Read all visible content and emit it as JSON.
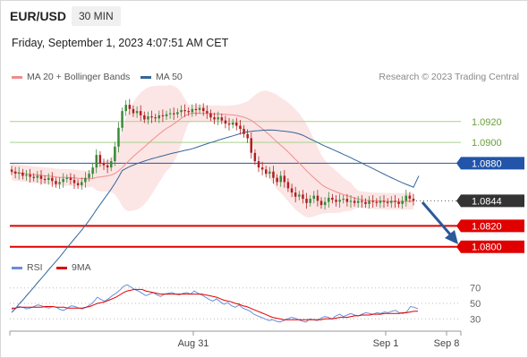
{
  "header": {
    "symbol": "EUR/USD",
    "timeframe": "30 MIN",
    "datetime": "Friday, September 1, 2023 4:07:51 AM CET"
  },
  "legend": {
    "items": [
      {
        "label": "MA 20 + Bollinger Bands",
        "color": "#f08c8c"
      },
      {
        "label": "MA 50",
        "color": "#33669a"
      }
    ],
    "credit": "Research © 2023 Trading Central"
  },
  "rsi_legend": {
    "items": [
      {
        "label": "RSI",
        "color": "#6a8ed6"
      },
      {
        "label": "9MA",
        "color": "#e00000"
      }
    ]
  },
  "colors": {
    "up": "#3a8a3a",
    "down": "#b02020",
    "band": "#fbdcdc",
    "ma20": "#f08c8c",
    "ma50": "#33669a",
    "support": "#e00000",
    "resistance_line": "#a9d18e",
    "pivot": "#2255aa",
    "arrow": "#2a5a9a"
  },
  "chart_data": [
    {
      "type": "candlestick",
      "title": "EUR/USD 30 MIN",
      "ylim": [
        1.0792,
        1.0955
      ],
      "x_ticks": [
        "Aug 31",
        "Sep 1",
        "Sep 8"
      ],
      "series": [
        {
          "name": "MA 20 + Bollinger Bands"
        },
        {
          "name": "MA 50"
        }
      ],
      "levels": [
        {
          "label": "1.0920",
          "value": 1.092,
          "style": "resistance"
        },
        {
          "label": "1.0900",
          "value": 1.09,
          "style": "resistance"
        },
        {
          "label": "1.0880",
          "value": 1.088,
          "style": "pivot"
        },
        {
          "label": "1.0844",
          "value": 1.0844,
          "style": "last"
        },
        {
          "label": "1.0820",
          "value": 1.082,
          "style": "support"
        },
        {
          "label": "1.0800",
          "value": 1.08,
          "style": "support"
        }
      ],
      "closes": [
        1.0872,
        1.087,
        1.0871,
        1.0868,
        1.0869,
        1.0867,
        1.0866,
        1.0868,
        1.0865,
        1.0864,
        1.0866,
        1.0863,
        1.086,
        1.0862,
        1.0865,
        1.0866,
        1.0864,
        1.0861,
        1.0859,
        1.0862,
        1.0866,
        1.087,
        1.0876,
        1.0888,
        1.088,
        1.0878,
        1.0876,
        1.0882,
        1.0896,
        1.0914,
        1.093,
        1.0936,
        1.0932,
        1.0928,
        1.093,
        1.0926,
        1.0922,
        1.0925,
        1.0924,
        1.0923,
        1.0926,
        1.0925,
        1.0927,
        1.0928,
        1.0927,
        1.0929,
        1.0931,
        1.093,
        1.0929,
        1.0932,
        1.0931,
        1.0933,
        1.093,
        1.0928,
        1.0924,
        1.0922,
        1.0924,
        1.0921,
        1.0918,
        1.0917,
        1.0919,
        1.0916,
        1.0913,
        1.0908,
        1.0904,
        1.089,
        1.0882,
        1.0876,
        1.0874,
        1.087,
        1.0872,
        1.0866,
        1.0862,
        1.0868,
        1.0862,
        1.0856,
        1.0852,
        1.0848,
        1.085,
        1.0846,
        1.0842,
        1.0846,
        1.0849,
        1.0844,
        1.084,
        1.0843,
        1.0847,
        1.0845,
        1.0843,
        1.0845,
        1.0846,
        1.0843,
        1.0844,
        1.0842,
        1.0844,
        1.0843,
        1.0841,
        1.0844,
        1.0843,
        1.0842,
        1.0844,
        1.0843,
        1.0842,
        1.0844,
        1.0843,
        1.0841,
        1.0844,
        1.0849,
        1.0846,
        1.0844
      ]
    },
    {
      "type": "line",
      "title": "RSI",
      "ylim": [
        20,
        80
      ],
      "y_ticks": [
        "70",
        "50",
        "30"
      ],
      "series": [
        {
          "name": "RSI",
          "values": [
            42,
            44,
            46,
            45,
            43,
            44,
            46,
            48,
            47,
            45,
            44,
            46,
            45,
            42,
            41,
            44,
            47,
            46,
            44,
            43,
            45,
            48,
            52,
            58,
            55,
            53,
            56,
            60,
            63,
            67,
            72,
            74,
            71,
            68,
            66,
            63,
            60,
            62,
            64,
            61,
            59,
            62,
            63,
            64,
            62,
            61,
            63,
            64,
            62,
            66,
            63,
            61,
            58,
            55,
            53,
            56,
            52,
            49,
            51,
            47,
            45,
            48,
            44,
            42,
            40,
            36,
            34,
            32,
            30,
            28,
            29,
            27,
            26,
            28,
            30,
            32,
            31,
            29,
            27,
            26,
            30,
            29,
            28,
            31,
            33,
            32,
            30,
            34,
            36,
            33,
            35,
            37,
            35,
            34,
            36,
            38,
            37,
            36,
            38,
            37,
            39,
            38,
            40,
            41,
            38,
            37,
            39,
            46,
            45,
            43
          ]
        },
        {
          "name": "9MA",
          "values": [
            44,
            44,
            45,
            45,
            45,
            45,
            45,
            45,
            45,
            46,
            46,
            46,
            45,
            45,
            45,
            44,
            44,
            44,
            44,
            44,
            45,
            46,
            48,
            50,
            51,
            52,
            54,
            56,
            58,
            61,
            64,
            66,
            67,
            68,
            68,
            68,
            66,
            65,
            64,
            63,
            62,
            62,
            62,
            62,
            62,
            62,
            62,
            62,
            62,
            62,
            62,
            62,
            61,
            60,
            59,
            58,
            56,
            54,
            53,
            52,
            50,
            49,
            47,
            46,
            44,
            42,
            40,
            38,
            36,
            34,
            32,
            31,
            30,
            29,
            29,
            29,
            29,
            29,
            29,
            29,
            29,
            29,
            29,
            29,
            30,
            30,
            30,
            31,
            32,
            32,
            32,
            33,
            34,
            34,
            35,
            35,
            35,
            36,
            36,
            36,
            37,
            37,
            37,
            37,
            37,
            38,
            38,
            39,
            40,
            40
          ]
        }
      ]
    }
  ]
}
